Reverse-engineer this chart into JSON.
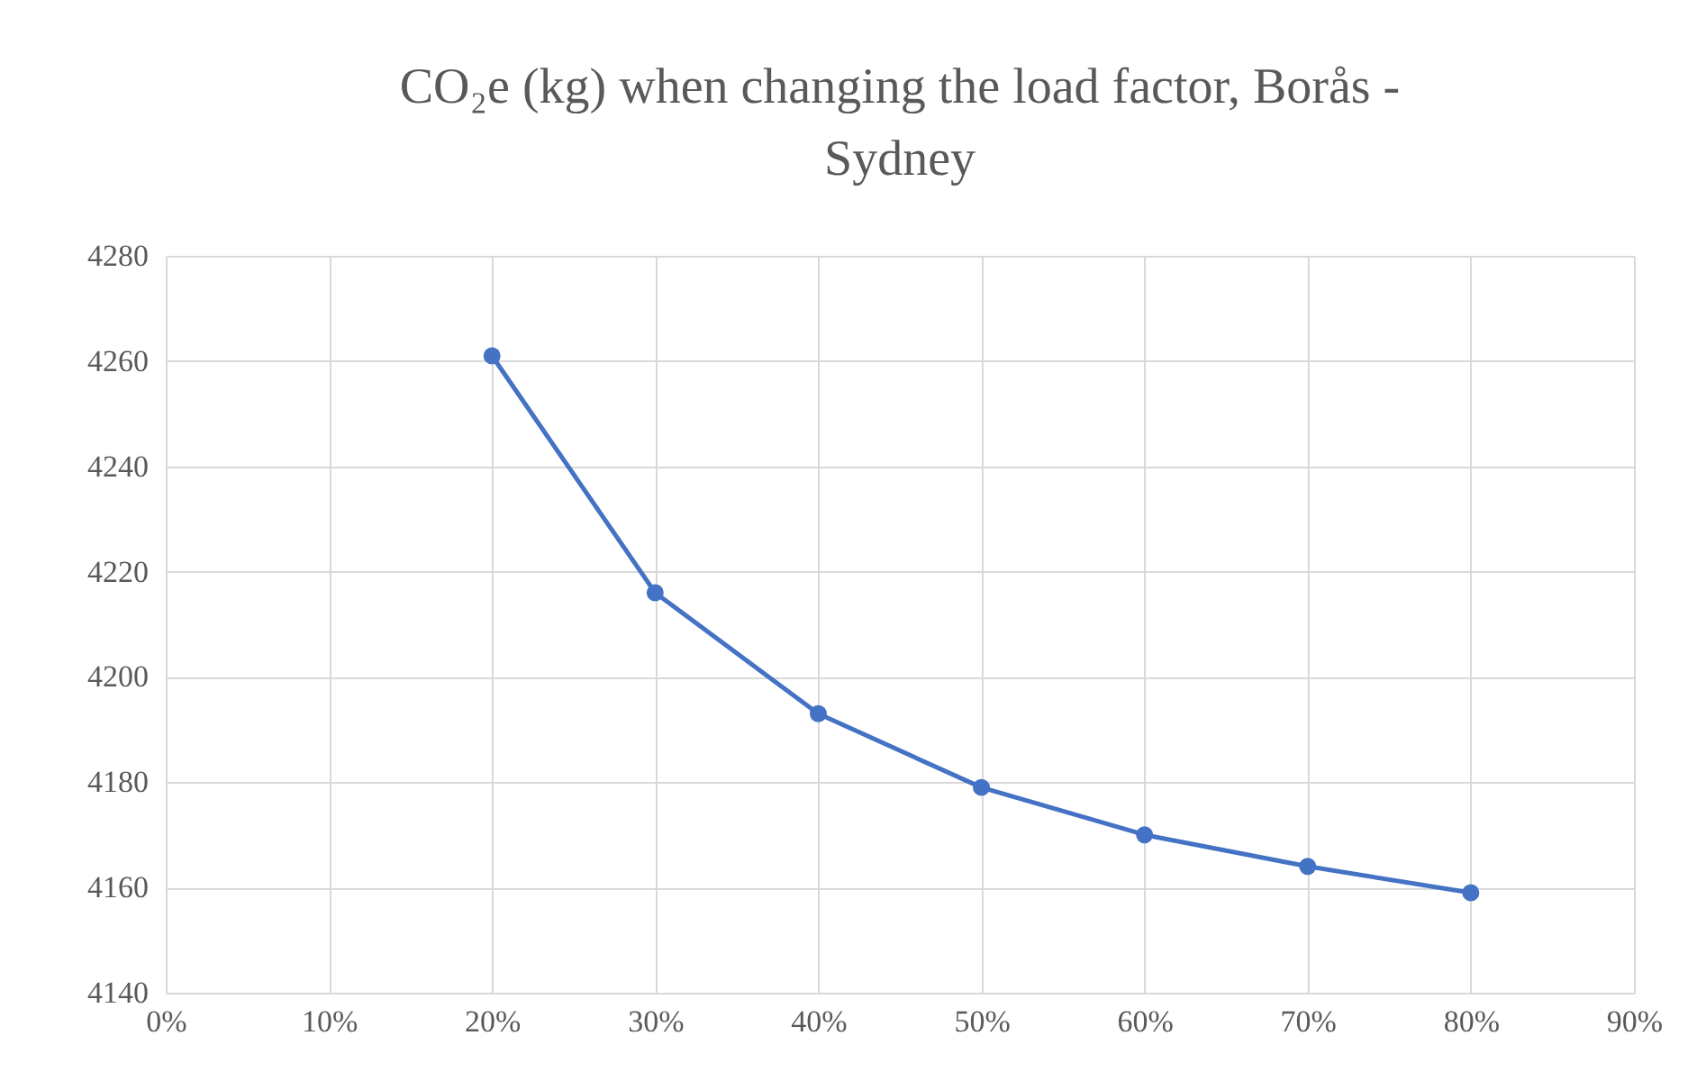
{
  "chart_data": {
    "type": "line",
    "title": "CO₂e (kg) when changing the load factor, Borås - Sydney",
    "x": [
      20,
      30,
      40,
      50,
      60,
      70,
      80
    ],
    "series": [
      {
        "color": "#4472c4",
        "values": [
          4261,
          4216,
          4193,
          4179,
          4170,
          4164,
          4159
        ]
      }
    ],
    "xlim": [
      0,
      90
    ],
    "xticks": [
      {
        "value": 0,
        "label": "0%"
      },
      {
        "value": 10,
        "label": "10%"
      },
      {
        "value": 20,
        "label": "20%"
      },
      {
        "value": 30,
        "label": "30%"
      },
      {
        "value": 40,
        "label": "40%"
      },
      {
        "value": 50,
        "label": "50%"
      },
      {
        "value": 60,
        "label": "60%"
      },
      {
        "value": 70,
        "label": "70%"
      },
      {
        "value": 80,
        "label": "80%"
      },
      {
        "value": 90,
        "label": "90%"
      }
    ],
    "ylim": [
      4140,
      4280
    ],
    "yticks": [
      4140,
      4160,
      4180,
      4200,
      4220,
      4240,
      4260,
      4280
    ],
    "grid": true,
    "marker": "circle",
    "line_style": "solid"
  }
}
